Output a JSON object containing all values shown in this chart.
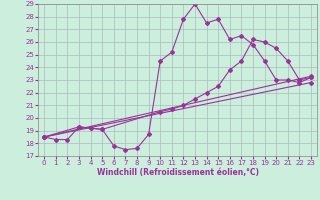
{
  "title": "",
  "xlabel": "Windchill (Refroidissement éolien,°C)",
  "ylabel": "",
  "background_color": "#cceedd",
  "grid_color": "#aacccc",
  "line_color": "#993399",
  "xlim": [
    -0.5,
    23.5
  ],
  "ylim": [
    17,
    29
  ],
  "xticks": [
    0,
    1,
    2,
    3,
    4,
    5,
    6,
    7,
    8,
    9,
    10,
    11,
    12,
    13,
    14,
    15,
    16,
    17,
    18,
    19,
    20,
    21,
    22,
    23
  ],
  "yticks": [
    17,
    18,
    19,
    20,
    21,
    22,
    23,
    24,
    25,
    26,
    27,
    28,
    29
  ],
  "line1_x": [
    0,
    1,
    2,
    3,
    4,
    5,
    6,
    7,
    8,
    9,
    10,
    11,
    12,
    13,
    14,
    15,
    16,
    17,
    18,
    19,
    20,
    21,
    22,
    23
  ],
  "line1_y": [
    18.5,
    18.3,
    18.3,
    19.3,
    19.2,
    19.1,
    17.8,
    17.5,
    17.6,
    18.7,
    24.5,
    25.2,
    27.8,
    29.0,
    27.5,
    27.8,
    26.2,
    26.5,
    25.8,
    24.5,
    23.0,
    23.0,
    22.8,
    23.2
  ],
  "line2_x": [
    0,
    3,
    4,
    5,
    10,
    11,
    12,
    13,
    14,
    15,
    16,
    17,
    18,
    19,
    20,
    21,
    22,
    23
  ],
  "line2_y": [
    18.5,
    19.3,
    19.2,
    19.1,
    20.5,
    20.7,
    21.0,
    21.5,
    22.0,
    22.5,
    23.8,
    24.5,
    26.2,
    26.0,
    25.5,
    24.5,
    23.0,
    23.2
  ],
  "line3_x": [
    0,
    23
  ],
  "line3_y": [
    18.5,
    23.3
  ],
  "line4_x": [
    0,
    23
  ],
  "line4_y": [
    18.5,
    22.8
  ]
}
